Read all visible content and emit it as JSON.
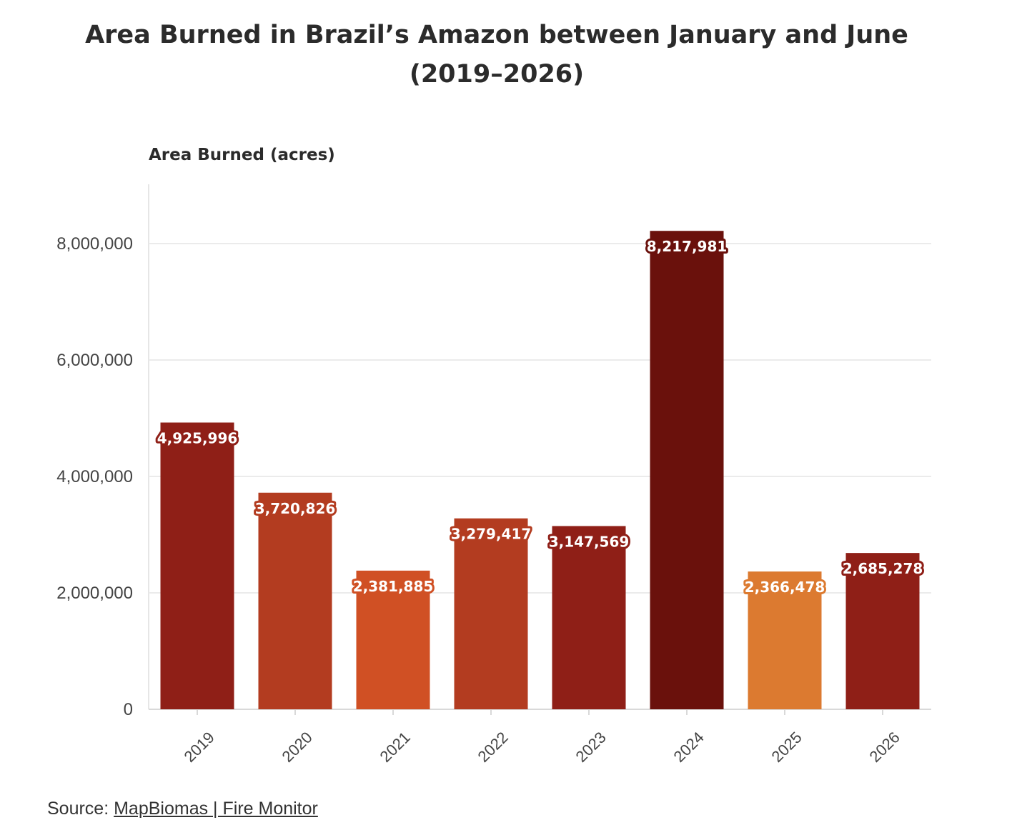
{
  "chart_data": {
    "type": "bar",
    "title": "Area Burned in Brazil’s Amazon between January and June (2019–2026)",
    "title_lines": [
      "Area Burned in Brazil’s Amazon between January and June",
      "(2019–2026)"
    ],
    "ylabel": "Area Burned (acres)",
    "xlabel": "",
    "categories": [
      "2019",
      "2020",
      "2021",
      "2022",
      "2023",
      "2024",
      "2025",
      "2026"
    ],
    "values": [
      4925996,
      3720826,
      2381885,
      3279417,
      3147569,
      8217981,
      2366478,
      2685278
    ],
    "value_labels": [
      "4,925,996",
      "3,720,826",
      "2,381,885",
      "3,279,417",
      "3,147,569",
      "8,217,981",
      "2,366,478",
      "2,685,278"
    ],
    "bar_colors": [
      "#8f1f17",
      "#b33c20",
      "#d05024",
      "#b33c20",
      "#8f1f17",
      "#6a110c",
      "#dc7a30",
      "#8f1f17"
    ],
    "ylim": [
      0,
      9000000
    ],
    "yticks": [
      0,
      2000000,
      4000000,
      6000000,
      8000000
    ],
    "ytick_labels": [
      "0",
      "2,000,000",
      "4,000,000",
      "6,000,000",
      "8,000,000"
    ],
    "grid": true,
    "legend": "none"
  },
  "source": {
    "prefix": "Source: ",
    "link_text": "MapBiomas | Fire Monitor"
  }
}
